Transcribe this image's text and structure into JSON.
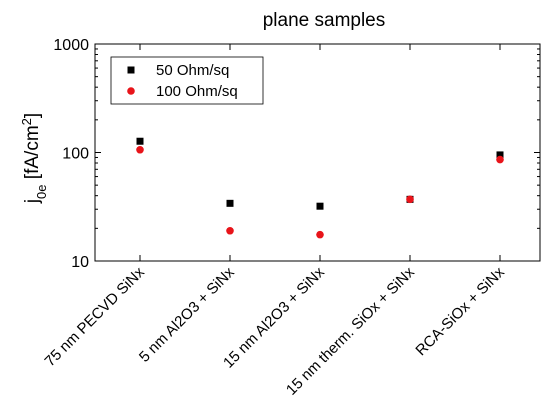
{
  "chart_data": {
    "type": "scatter",
    "title": "plane samples",
    "xlabel": "",
    "ylabel": {
      "main": "j",
      "sub": "0e",
      "rest": " [fA/cm",
      "sup": "2",
      "end": "]"
    },
    "yscale": "log",
    "ylim": [
      10,
      1000
    ],
    "yticks": [
      10,
      100,
      1000
    ],
    "ytick_labels": [
      "10",
      "100",
      "1000"
    ],
    "categories": [
      "75 nm PECVD SiNx",
      "5 nm Al2O3 + SiNx",
      "15 nm Al2O3 + SiNx",
      "15 nm therm. SiOx + SiNx",
      "RCA-SiOx + SiNx"
    ],
    "series": [
      {
        "name": "50 Ohm/sq",
        "marker": "square",
        "color": "#000000",
        "values": [
          127,
          34,
          32,
          37,
          95
        ]
      },
      {
        "name": "100 Ohm/sq",
        "marker": "circle",
        "color": "#e8141a",
        "values": [
          106,
          19,
          17.5,
          37,
          86
        ]
      }
    ],
    "legend": "top-left",
    "grid": false
  }
}
